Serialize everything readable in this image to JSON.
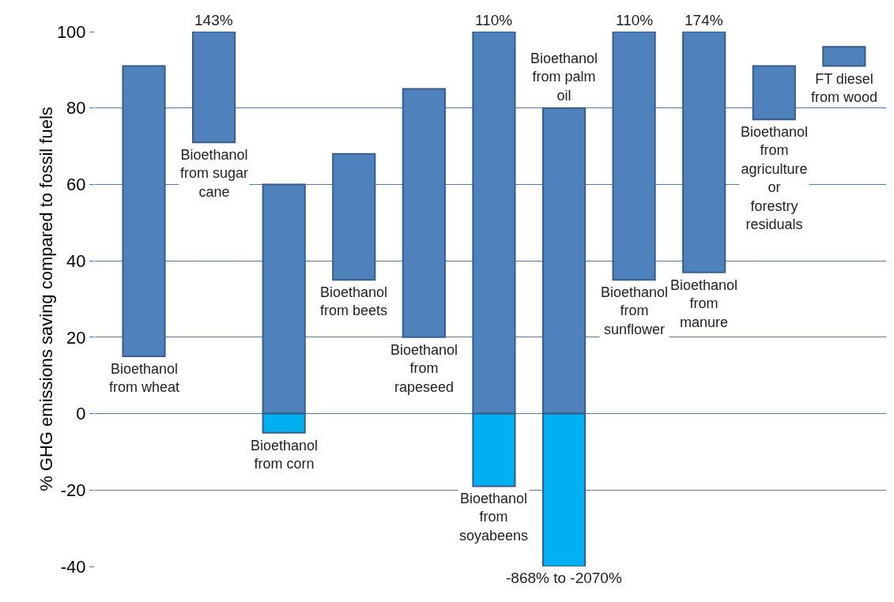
{
  "chart_data": {
    "type": "bar",
    "ylabel": "% GHG emissions saving compared to fossil fuels",
    "categories": [
      "Bioethanol from wheat",
      "Bioethanol from sugar cane",
      "Bioethanol from corn",
      "Bioethanol from beets",
      "Bioethanol from rapeseed",
      "Bioethanol from soyabeens",
      "Bioethanol from palm oil",
      "Bioethanol from sunflower",
      "Bioethanol from manure",
      "Bioethanol from agriculture or forestry residuals",
      "FT diesel from wood"
    ],
    "series": [
      {
        "color": "#4f81bd",
        "base": [
          15,
          71,
          0,
          35,
          20,
          0,
          0,
          35,
          37,
          77,
          91
        ],
        "values": [
          76,
          29,
          60,
          33,
          65,
          100,
          80,
          65,
          63,
          14,
          5
        ]
      },
      {
        "color": "#00b0f0",
        "base": [
          null,
          null,
          0,
          null,
          null,
          0,
          0,
          null,
          null,
          null,
          null
        ],
        "values": [
          null,
          null,
          -5,
          null,
          null,
          -19,
          -40,
          null,
          null,
          null,
          null
        ]
      }
    ],
    "ylim": [
      -40,
      100
    ],
    "yticks": [
      -40,
      -20,
      0,
      20,
      40,
      60,
      80,
      100
    ],
    "grid": "y",
    "tick_labels": "y",
    "annotations": [
      {
        "text": "143%",
        "x": "Bioethanol from sugar cane",
        "y": 100
      },
      {
        "text": "110%",
        "x": "Bioethanol from soyabeens",
        "y": 100
      },
      {
        "text": "110%",
        "x": "Bioethanol from sunflower",
        "y": 100
      },
      {
        "text": "174%",
        "x": "Bioethanol from manure",
        "y": 100
      },
      {
        "text": "-868% to -2070%",
        "x": "Bioethanol from palm oil",
        "y": -40
      }
    ]
  }
}
